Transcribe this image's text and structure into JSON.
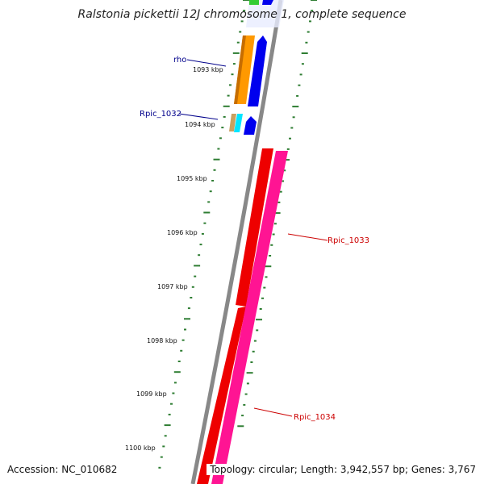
{
  "title": "Ralstonia pickettii 12J chromosome 1, complete sequence",
  "accession": "Accession: NC_010682",
  "topology": "Topology: circular; Length: 3,942,557 bp; Genes: 3,767",
  "kbp_labels": [
    "1093 kbp",
    "1094 kbp",
    "1095 kbp",
    "1096 kbp",
    "1097 kbp",
    "1098 kbp",
    "1099 kbp",
    "1100 kbp"
  ],
  "gene_labels": {
    "rho": "rho",
    "rpic1032": "Rpic_1032",
    "rpic1033": "Rpic_1033",
    "rpic1034": "Rpic_1034"
  },
  "colors": {
    "tick": "#2e7d32",
    "backbone": "#888888",
    "gene_label_fwd": "#00008b",
    "gene_label_rev": "#cc0000",
    "red": "#ee0000",
    "pink": "#ff1493",
    "orange": "#ff9900",
    "blue": "#0000ee",
    "cyan": "#00e5ff",
    "tan": "#c8a060",
    "green": "#33cc33"
  }
}
